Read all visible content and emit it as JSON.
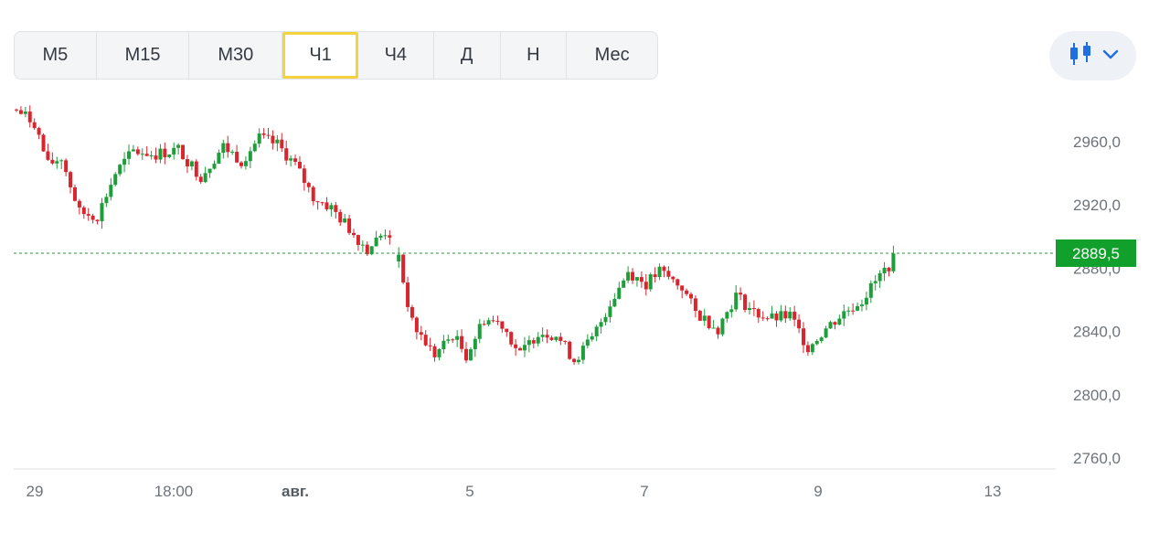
{
  "timeframes": [
    "M5",
    "M15",
    "M30",
    "Ч1",
    "Ч4",
    "Д",
    "Н",
    "Мес"
  ],
  "active_timeframe": "Ч1",
  "chart_type_button": {
    "icon": "candlestick-icon",
    "dropdown_icon": "chevron-down-icon"
  },
  "colors": {
    "up": "#1e9e3a",
    "down": "#d9262e",
    "current_price_bg": "#12a02c",
    "active_border": "#f5d33d"
  },
  "chart_data": {
    "type": "candlestick",
    "y_ticks": [
      "2960,0",
      "2920,0",
      "2880,0",
      "2840,0",
      "2800,0",
      "2760,0"
    ],
    "y_tick_values": [
      2960,
      2920,
      2880,
      2840,
      2800,
      2760
    ],
    "x_ticks": [
      "29",
      "18:00",
      "авг.",
      "5",
      "7",
      "9",
      "13"
    ],
    "x_tick_bold": [
      false,
      false,
      true,
      false,
      false,
      false,
      false
    ],
    "current_price": 2889.5,
    "current_price_label": "2889,5",
    "segments": [
      {
        "from_index": 0,
        "anchors": [
          [
            0,
            2980
          ],
          [
            4,
            2972
          ],
          [
            7,
            2945
          ],
          [
            10,
            2950
          ],
          [
            14,
            2915
          ],
          [
            18,
            2913
          ],
          [
            22,
            2940
          ],
          [
            26,
            2954
          ],
          [
            31,
            2952
          ],
          [
            36,
            2955
          ],
          [
            41,
            2938
          ],
          [
            46,
            2957
          ],
          [
            50,
            2948
          ],
          [
            54,
            2962
          ],
          [
            58,
            2958
          ],
          [
            62,
            2945
          ],
          [
            66,
            2925
          ],
          [
            70,
            2918
          ],
          [
            74,
            2905
          ],
          [
            78,
            2892
          ],
          [
            82,
            2903
          ],
          [
            84,
            2900
          ]
        ]
      },
      {
        "from_index": 85,
        "anchors": [
          [
            85,
            2885
          ],
          [
            88,
            2845
          ],
          [
            93,
            2825
          ],
          [
            97,
            2838
          ],
          [
            100,
            2825
          ],
          [
            104,
            2848
          ],
          [
            108,
            2845
          ],
          [
            112,
            2825
          ],
          [
            116,
            2840
          ],
          [
            120,
            2838
          ],
          [
            124,
            2822
          ],
          [
            128,
            2835
          ],
          [
            132,
            2858
          ],
          [
            136,
            2878
          ],
          [
            140,
            2870
          ],
          [
            143,
            2878
          ],
          [
            148,
            2868
          ],
          [
            151,
            2852
          ],
          [
            156,
            2842
          ],
          [
            160,
            2863
          ],
          [
            164,
            2852
          ],
          [
            168,
            2848
          ],
          [
            172,
            2850
          ],
          [
            176,
            2830
          ],
          [
            180,
            2842
          ],
          [
            184,
            2852
          ],
          [
            188,
            2860
          ],
          [
            192,
            2875
          ],
          [
            196,
            2889
          ]
        ]
      }
    ]
  }
}
